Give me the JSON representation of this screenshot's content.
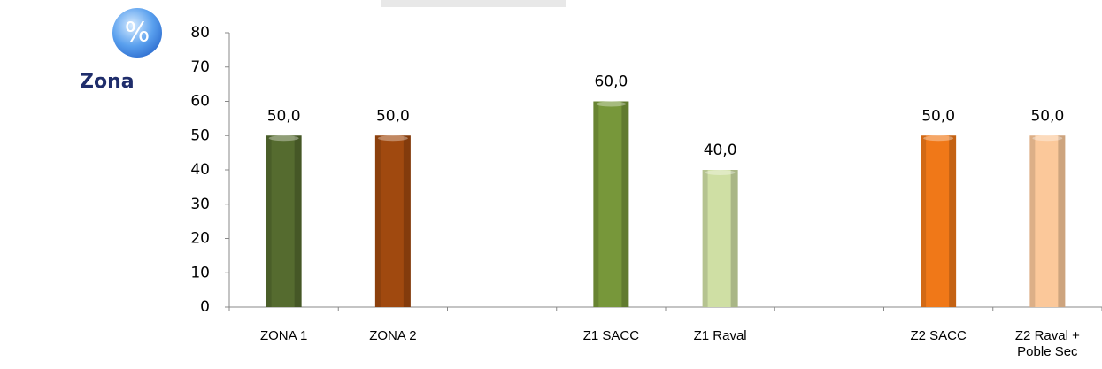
{
  "chart_data": {
    "type": "bar",
    "badge": "%",
    "y_label": "Zona",
    "categories": [
      "ZONA 1",
      "ZONA 2",
      null,
      "Z1 SACC",
      "Z1 Raval",
      null,
      "Z2 SACC",
      "Z2 Raval + Poble Sec"
    ],
    "values": [
      50,
      50,
      null,
      60,
      40,
      null,
      50,
      50
    ],
    "value_labels": [
      "50,0",
      "50,0",
      null,
      "60,0",
      "40,0",
      null,
      "50,0",
      "50,0"
    ],
    "colors": [
      "#556b2f",
      "#a0490f",
      null,
      "#77973a",
      "#cfdfa4",
      null,
      "#f07818",
      "#fbc89a"
    ],
    "ylim": [
      0,
      80
    ],
    "yticks": [
      0,
      10,
      20,
      30,
      40,
      50,
      60,
      70,
      80
    ]
  }
}
